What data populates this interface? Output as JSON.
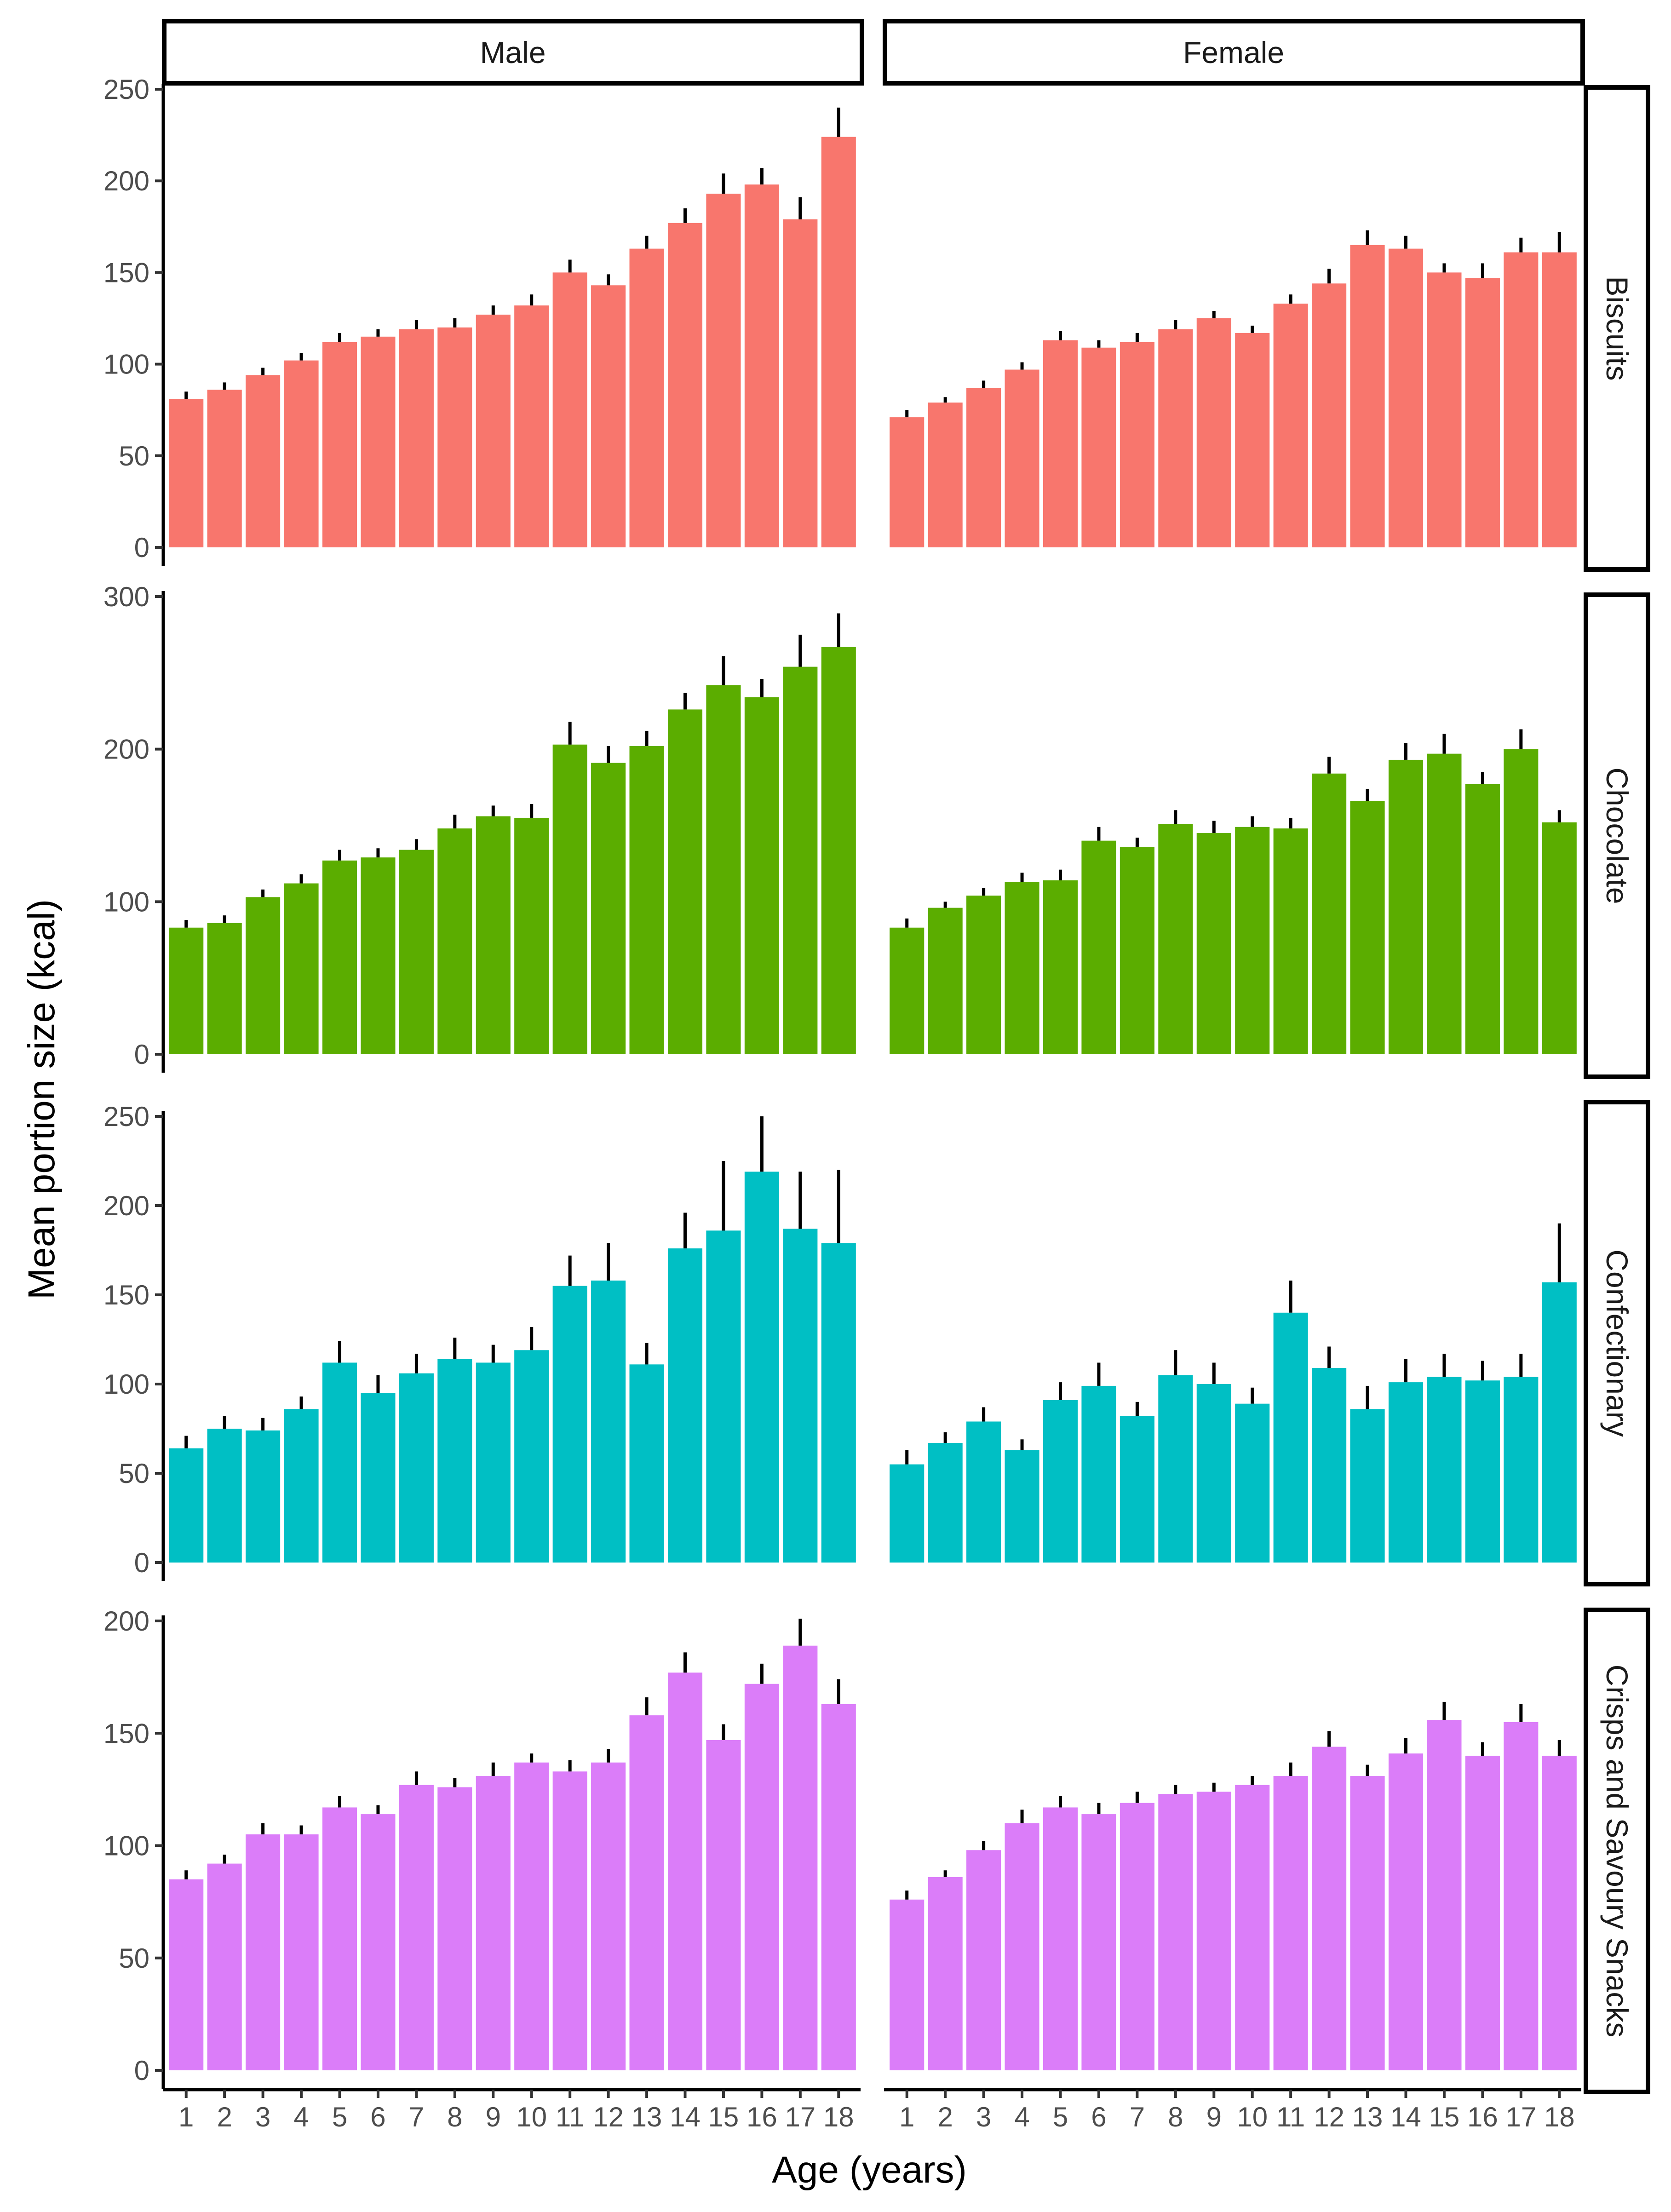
{
  "chart_data": {
    "type": "bar",
    "xlabel": "Age (years)",
    "ylabel": "Mean portion size (kcal)",
    "categories": [
      "1",
      "2",
      "3",
      "4",
      "5",
      "6",
      "7",
      "8",
      "9",
      "10",
      "11",
      "12",
      "13",
      "14",
      "15",
      "16",
      "17",
      "18"
    ],
    "columns": [
      "Male",
      "Female"
    ],
    "panels": [
      {
        "row": "Biscuits",
        "color": "#F8766D",
        "ylim": [
          0,
          250
        ],
        "yticks": [
          0,
          50,
          100,
          150,
          200,
          250
        ],
        "series": [
          {
            "name": "Male",
            "values": [
              81,
              86,
              94,
              102,
              112,
              115,
              119,
              120,
              127,
              132,
              150,
              143,
              163,
              177,
              193,
              198,
              179,
              224
            ],
            "error_upper": [
              85,
              90,
              98,
              106,
              117,
              119,
              124,
              125,
              132,
              138,
              157,
              149,
              170,
              185,
              204,
              207,
              191,
              240
            ]
          },
          {
            "name": "Female",
            "values": [
              71,
              79,
              87,
              97,
              113,
              109,
              112,
              119,
              125,
              117,
              133,
              144,
              165,
              163,
              150,
              147,
              161,
              161
            ],
            "error_upper": [
              75,
              82,
              91,
              101,
              118,
              113,
              117,
              124,
              129,
              121,
              138,
              152,
              173,
              170,
              155,
              155,
              169,
              172
            ]
          }
        ]
      },
      {
        "row": "Chocolate",
        "color": "#5BAD00",
        "ylim": [
          0,
          300
        ],
        "yticks": [
          0,
          100,
          200,
          300
        ],
        "series": [
          {
            "name": "Male",
            "values": [
              83,
              86,
              103,
              112,
              127,
              129,
              134,
              148,
              156,
              155,
              203,
              191,
              202,
              226,
              242,
              234,
              254,
              267
            ],
            "error_upper": [
              88,
              91,
              108,
              118,
              134,
              135,
              141,
              157,
              163,
              164,
              218,
              202,
              212,
              237,
              261,
              246,
              275,
              289
            ]
          },
          {
            "name": "Female",
            "values": [
              83,
              96,
              104,
              113,
              114,
              140,
              136,
              151,
              145,
              149,
              148,
              184,
              166,
              193,
              197,
              177,
              200,
              152
            ],
            "error_upper": [
              89,
              100,
              109,
              119,
              121,
              149,
              142,
              160,
              153,
              156,
              155,
              195,
              174,
              204,
              210,
              185,
              213,
              160
            ]
          }
        ]
      },
      {
        "row": "Confectionary",
        "color": "#00BFC4",
        "ylim": [
          0,
          250
        ],
        "yticks": [
          0,
          50,
          100,
          150,
          200,
          250
        ],
        "series": [
          {
            "name": "Male",
            "values": [
              64,
              75,
              74,
              86,
              112,
              95,
              106,
              114,
              112,
              119,
              155,
              158,
              111,
              176,
              186,
              219,
              187,
              179
            ],
            "error_upper": [
              71,
              82,
              81,
              93,
              124,
              105,
              117,
              126,
              122,
              132,
              172,
              179,
              123,
              196,
              225,
              250,
              219,
              220
            ]
          },
          {
            "name": "Female",
            "values": [
              55,
              67,
              79,
              63,
              91,
              99,
              82,
              105,
              100,
              89,
              140,
              109,
              86,
              101,
              104,
              102,
              104,
              157
            ],
            "error_upper": [
              63,
              73,
              87,
              69,
              101,
              112,
              90,
              119,
              112,
              98,
              158,
              121,
              99,
              114,
              117,
              113,
              117,
              190
            ]
          }
        ]
      },
      {
        "row": "Crisps and Savoury Snacks",
        "color": "#DB7DF9",
        "ylim": [
          0,
          200
        ],
        "yticks": [
          0,
          50,
          100,
          150,
          200
        ],
        "series": [
          {
            "name": "Male",
            "values": [
              85,
              92,
              105,
              105,
              117,
              114,
              127,
              126,
              131,
              137,
              133,
              137,
              158,
              177,
              147,
              172,
              189,
              163
            ],
            "error_upper": [
              89,
              96,
              110,
              109,
              122,
              118,
              133,
              130,
              137,
              141,
              138,
              143,
              166,
              186,
              154,
              181,
              201,
              174
            ]
          },
          {
            "name": "Female",
            "values": [
              76,
              86,
              98,
              110,
              117,
              114,
              119,
              123,
              124,
              127,
              131,
              144,
              131,
              141,
              156,
              140,
              155,
              140
            ],
            "error_upper": [
              80,
              89,
              102,
              116,
              122,
              119,
              124,
              127,
              128,
              131,
              137,
              151,
              136,
              148,
              164,
              146,
              163,
              147
            ]
          }
        ]
      }
    ]
  }
}
